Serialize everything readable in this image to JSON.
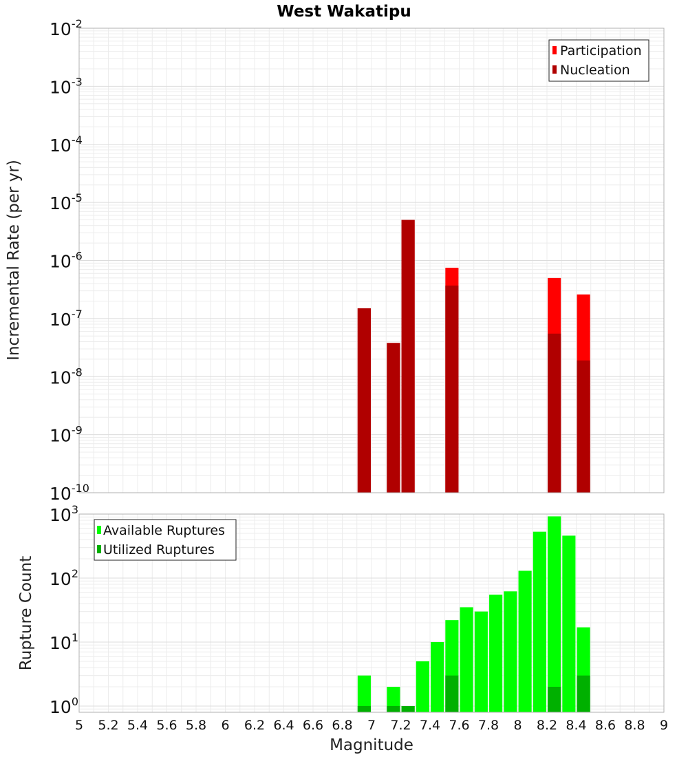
{
  "chart_data": [
    {
      "type": "bar",
      "title": "West Wakatipu",
      "ylabel": "Incremental Rate (per yr)",
      "yscale": "log",
      "ylim": [
        1e-10,
        0.01
      ],
      "ytick_exponents": [
        -2,
        -3,
        -4,
        -5,
        -6,
        -7,
        -8,
        -9,
        -10
      ],
      "grid": true,
      "legend_position": "top-right",
      "series": [
        {
          "name": "Participation",
          "color": "#ff0000",
          "points": [
            {
              "x": 6.95,
              "y": 1.5e-07
            },
            {
              "x": 7.15,
              "y": 3.8e-08
            },
            {
              "x": 7.25,
              "y": 5e-06
            },
            {
              "x": 7.55,
              "y": 7.5e-07
            },
            {
              "x": 8.25,
              "y": 5e-07
            },
            {
              "x": 8.45,
              "y": 2.6e-07
            }
          ]
        },
        {
          "name": "Nucleation",
          "color": "#b00000",
          "points": [
            {
              "x": 6.95,
              "y": 1.5e-07
            },
            {
              "x": 7.15,
              "y": 3.8e-08
            },
            {
              "x": 7.25,
              "y": 5e-06
            },
            {
              "x": 7.55,
              "y": 3.7e-07
            },
            {
              "x": 8.25,
              "y": 5.5e-08
            },
            {
              "x": 8.45,
              "y": 1.9e-08
            }
          ]
        }
      ]
    },
    {
      "type": "bar",
      "xlabel": "Magnitude",
      "ylabel": "Rupture Count",
      "yscale": "log",
      "ylim": [
        0.8,
        1000
      ],
      "ytick_exponents": [
        3,
        2,
        1,
        0
      ],
      "xlim": [
        5,
        9
      ],
      "xticks": [
        "5",
        "5.2",
        "5.4",
        "5.6",
        "5.8",
        "6",
        "6.2",
        "6.4",
        "6.6",
        "6.8",
        "7",
        "7.2",
        "7.4",
        "7.6",
        "7.8",
        "8",
        "8.2",
        "8.4",
        "8.6",
        "8.8",
        "9"
      ],
      "grid": true,
      "legend_position": "top-left",
      "series": [
        {
          "name": "Available Ruptures",
          "color": "#00ff00",
          "points": [
            {
              "x": 6.95,
              "y": 3
            },
            {
              "x": 7.15,
              "y": 2
            },
            {
              "x": 7.25,
              "y": 1
            },
            {
              "x": 7.35,
              "y": 5
            },
            {
              "x": 7.45,
              "y": 10
            },
            {
              "x": 7.55,
              "y": 22
            },
            {
              "x": 7.65,
              "y": 35
            },
            {
              "x": 7.75,
              "y": 30
            },
            {
              "x": 7.85,
              "y": 55
            },
            {
              "x": 7.95,
              "y": 62
            },
            {
              "x": 8.05,
              "y": 130
            },
            {
              "x": 8.15,
              "y": 530
            },
            {
              "x": 8.25,
              "y": 920
            },
            {
              "x": 8.35,
              "y": 460
            },
            {
              "x": 8.45,
              "y": 17
            }
          ]
        },
        {
          "name": "Utilized Ruptures",
          "color": "#00b000",
          "points": [
            {
              "x": 6.95,
              "y": 1
            },
            {
              "x": 7.15,
              "y": 1
            },
            {
              "x": 7.25,
              "y": 1
            },
            {
              "x": 7.55,
              "y": 3
            },
            {
              "x": 8.25,
              "y": 2
            },
            {
              "x": 8.45,
              "y": 3
            }
          ]
        }
      ]
    }
  ]
}
